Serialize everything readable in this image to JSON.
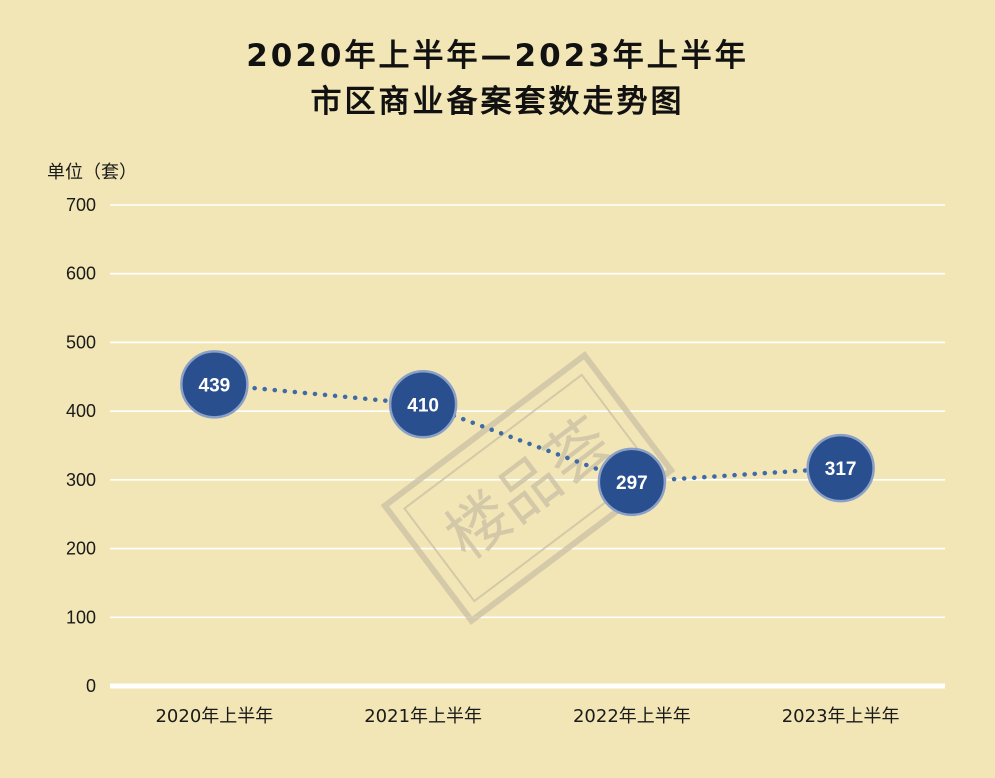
{
  "chart_data": {
    "type": "line",
    "title": "2020年上半年—2023年上半年",
    "subtitle": "市区商业备案套数走势图",
    "unit_label": "单位（套）",
    "categories": [
      "2020年上半年",
      "2021年上半年",
      "2022年上半年",
      "2023年上半年"
    ],
    "values": [
      439,
      410,
      297,
      317
    ],
    "ylim": [
      0,
      700
    ],
    "yticks": [
      0,
      100,
      200,
      300,
      400,
      500,
      600,
      700
    ],
    "grid": true,
    "line_style": "dotted",
    "colors": {
      "background": "#f2e6b6",
      "marker": "#2a4f8f",
      "line": "#3e6aa6",
      "grid": "#ffffff"
    }
  },
  "watermark": {
    "text": "楼品荟"
  }
}
